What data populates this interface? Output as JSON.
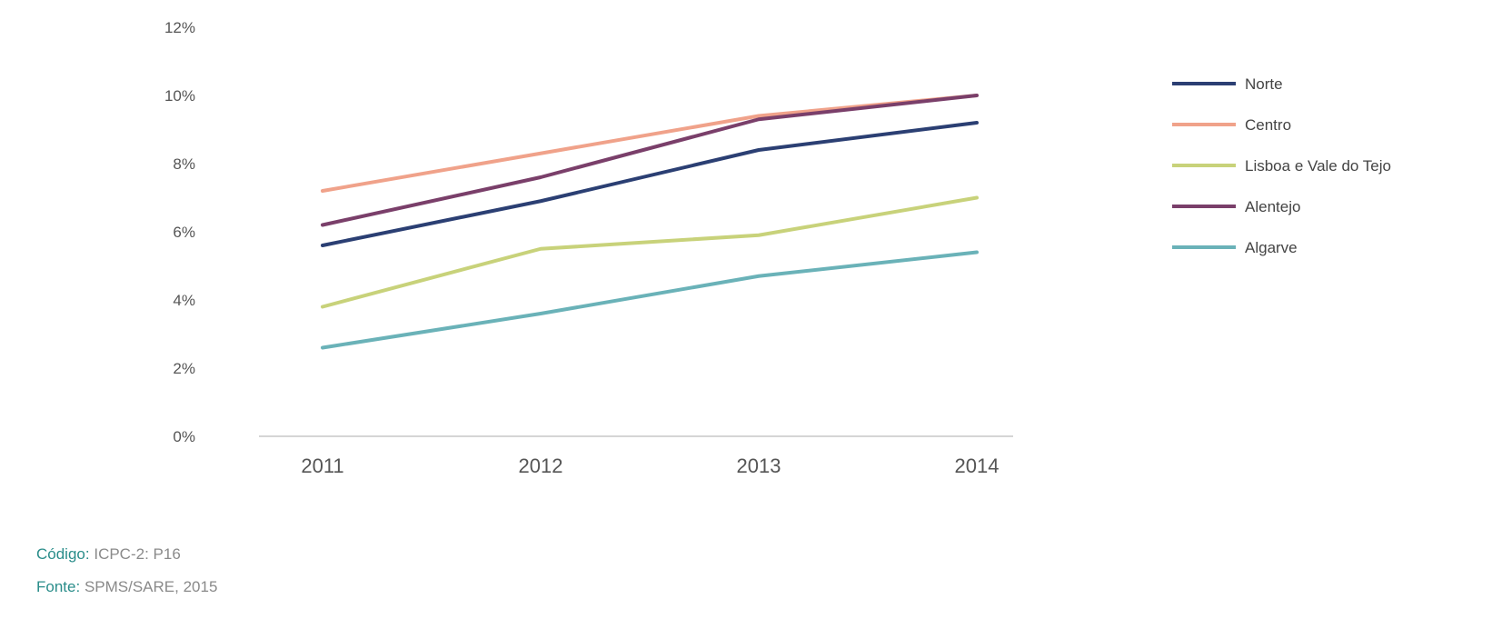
{
  "chart_data": {
    "type": "line",
    "categories": [
      "2011",
      "2012",
      "2013",
      "2014"
    ],
    "yticks": [
      "0%",
      "2%",
      "4%",
      "6%",
      "8%",
      "10%",
      "12%"
    ],
    "ylim": [
      0,
      12
    ],
    "grid": false,
    "legend_position": "right",
    "series": [
      {
        "name": "Norte",
        "color": "#2b3f73",
        "values": [
          5.6,
          6.9,
          8.4,
          9.2
        ]
      },
      {
        "name": "Centro",
        "color": "#f0a28a",
        "values": [
          7.2,
          8.3,
          9.4,
          10.0
        ]
      },
      {
        "name": "Lisboa e Vale do Tejo",
        "color": "#c8d27a",
        "values": [
          3.8,
          5.5,
          5.9,
          7.0
        ]
      },
      {
        "name": "Alentejo",
        "color": "#7a3f6a",
        "values": [
          6.2,
          7.6,
          9.3,
          10.0
        ]
      },
      {
        "name": "Algarve",
        "color": "#6ab2b8",
        "values": [
          2.6,
          3.6,
          4.7,
          5.4
        ]
      }
    ]
  },
  "footnotes": {
    "code_label": "Código:",
    "code_value": "ICPC-2: P16",
    "source_label": "Fonte:",
    "source_value": "SPMS/SARE, 2015"
  }
}
